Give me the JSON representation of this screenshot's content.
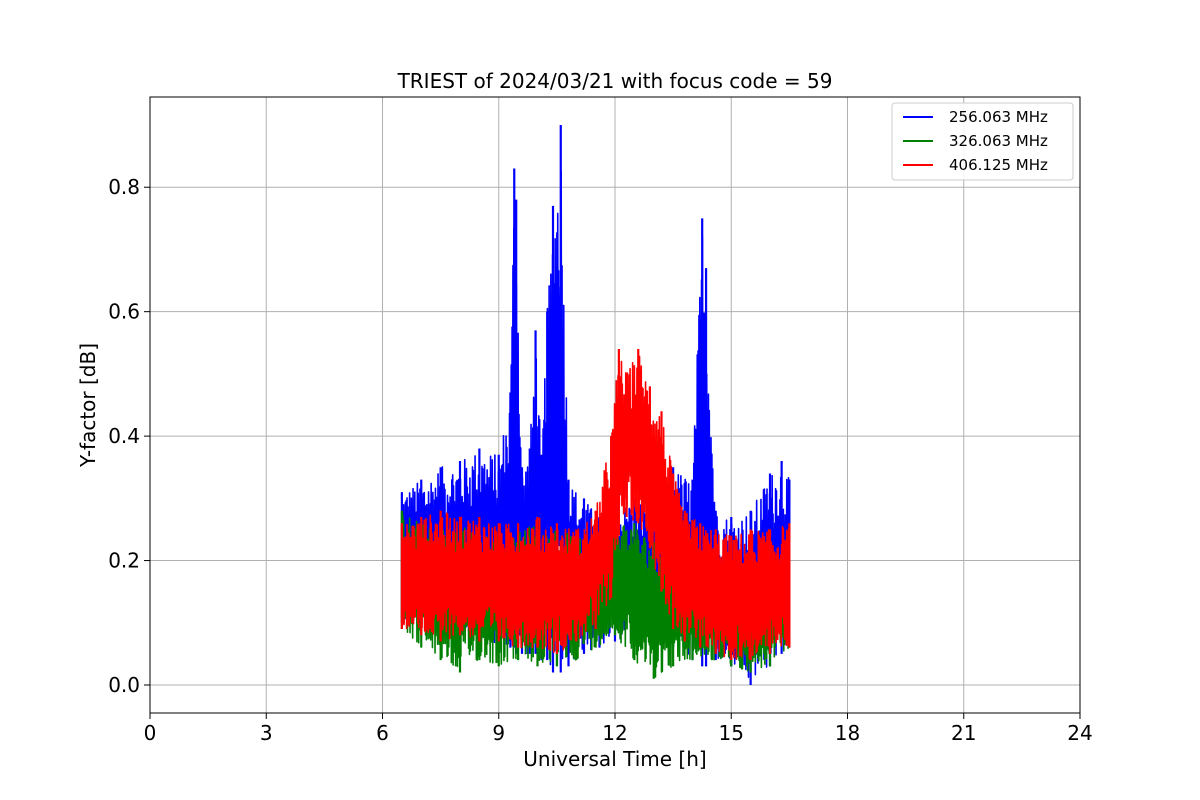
{
  "chart_data": {
    "type": "line",
    "title": "TRIEST of 2024/03/21 with focus code = 59",
    "xlabel": "Universal Time [h]",
    "ylabel": "Y-factor [dB]",
    "xlim": [
      0,
      24
    ],
    "ylim": [
      -0.045,
      0.945
    ],
    "xticks": [
      0,
      3,
      6,
      9,
      12,
      15,
      18,
      21,
      24
    ],
    "yticks": [
      0.0,
      0.2,
      0.4,
      0.6,
      0.8
    ],
    "xtick_labels": [
      "0",
      "3",
      "6",
      "9",
      "12",
      "15",
      "18",
      "21",
      "24"
    ],
    "ytick_labels": [
      "0.0",
      "0.2",
      "0.4",
      "0.6",
      "0.8"
    ],
    "grid": true,
    "legend_position": "top-right",
    "series": [
      {
        "name": "256.063 MHz",
        "color": "#0000ff",
        "x": [
          6.5,
          7.0,
          7.5,
          8.0,
          8.5,
          9.0,
          9.3,
          9.4,
          9.45,
          9.6,
          9.8,
          9.95,
          10.1,
          10.25,
          10.4,
          10.6,
          10.8,
          11.2,
          11.6,
          12.0,
          12.5,
          13.0,
          13.5,
          14.0,
          14.25,
          14.35,
          14.6,
          15.0,
          15.5,
          16.0,
          16.3,
          16.5
        ],
        "high": [
          0.31,
          0.33,
          0.35,
          0.36,
          0.38,
          0.37,
          0.47,
          0.83,
          0.78,
          0.35,
          0.38,
          0.57,
          0.37,
          0.6,
          0.77,
          0.9,
          0.33,
          0.3,
          0.27,
          0.28,
          0.3,
          0.29,
          0.35,
          0.33,
          0.75,
          0.67,
          0.28,
          0.27,
          0.28,
          0.34,
          0.36,
          0.33
        ],
        "low": [
          0.1,
          0.09,
          0.08,
          0.08,
          0.07,
          0.06,
          0.06,
          0.06,
          0.05,
          0.05,
          0.05,
          0.05,
          0.04,
          0.04,
          0.02,
          0.02,
          0.03,
          0.05,
          0.06,
          0.07,
          0.08,
          0.08,
          0.07,
          0.04,
          0.03,
          0.03,
          0.04,
          0.03,
          0.0,
          0.03,
          0.05,
          0.06
        ]
      },
      {
        "name": "326.063 MHz",
        "color": "#008000",
        "x": [
          6.5,
          7.0,
          7.5,
          8.0,
          8.5,
          9.0,
          9.5,
          10.0,
          10.5,
          11.0,
          11.5,
          12.0,
          12.5,
          13.0,
          13.5,
          14.0,
          14.5,
          15.0,
          15.5,
          16.0,
          16.5
        ],
        "high": [
          0.28,
          0.26,
          0.25,
          0.26,
          0.25,
          0.24,
          0.25,
          0.26,
          0.25,
          0.24,
          0.23,
          0.27,
          0.26,
          0.23,
          0.2,
          0.2,
          0.21,
          0.19,
          0.18,
          0.2,
          0.22
        ],
        "low": [
          0.09,
          0.06,
          0.04,
          0.02,
          0.04,
          0.03,
          0.04,
          0.03,
          0.03,
          0.04,
          0.06,
          0.08,
          0.04,
          0.01,
          0.03,
          0.04,
          0.04,
          0.03,
          0.02,
          0.03,
          0.06
        ]
      },
      {
        "name": "406.125 MHz",
        "color": "#ff0000",
        "x": [
          6.5,
          7.0,
          7.5,
          8.0,
          8.5,
          9.0,
          9.5,
          10.0,
          10.5,
          11.0,
          11.5,
          11.9,
          12.1,
          12.3,
          12.6,
          12.9,
          13.2,
          13.5,
          13.8,
          14.2,
          14.6,
          15.0,
          15.5,
          16.0,
          16.5
        ],
        "high": [
          0.26,
          0.27,
          0.28,
          0.27,
          0.27,
          0.26,
          0.26,
          0.27,
          0.26,
          0.25,
          0.28,
          0.4,
          0.54,
          0.5,
          0.54,
          0.48,
          0.44,
          0.34,
          0.28,
          0.26,
          0.25,
          0.24,
          0.25,
          0.25,
          0.26
        ],
        "low": [
          0.09,
          0.08,
          0.07,
          0.08,
          0.07,
          0.07,
          0.06,
          0.06,
          0.05,
          0.07,
          0.09,
          0.14,
          0.24,
          0.27,
          0.26,
          0.22,
          0.15,
          0.09,
          0.07,
          0.06,
          0.05,
          0.04,
          0.04,
          0.05,
          0.06
        ]
      }
    ]
  }
}
